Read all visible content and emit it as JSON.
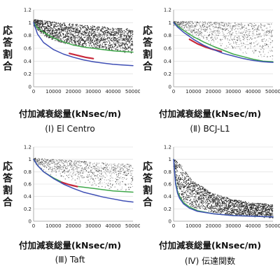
{
  "panels": [
    {
      "caption": "(Ⅰ) El Centro",
      "ylabel": "応答割合",
      "xlabel": "付加減衰総量(kNsec/m)"
    },
    {
      "caption": "(Ⅱ) BCJ-L1",
      "ylabel": "応答割合",
      "xlabel": "付加減衰総量(kNsec/m)"
    },
    {
      "caption": "(Ⅲ) Taft",
      "ylabel": "応答割合",
      "xlabel": "付加減衰総量(kNsec/m)"
    },
    {
      "caption": "(Ⅳ) 伝達関数",
      "ylabel": "応答割合",
      "xlabel": "付加減衰総量(kNsec/m)"
    }
  ],
  "colors": {
    "scatter": "#222222",
    "blue": "#3f4fb5",
    "red": "#c8283a",
    "green": "#3fa84a",
    "grid": "#d9d9d9",
    "axis": "#9a9a9a"
  },
  "chart_data": [
    {
      "type": "scatter",
      "title": "",
      "xlabel": "付加減衰総量(kNsec/m)",
      "ylabel": "応答割合",
      "xlim": [
        0,
        50000
      ],
      "ylim": [
        0,
        1.2
      ],
      "x_ticks": [
        "0",
        "10000",
        "20000",
        "30000",
        "40000",
        "50000"
      ],
      "y_ticks": [
        "0",
        "0.2",
        "0.4",
        "0.6",
        "0.8",
        "1",
        "1.2"
      ],
      "grid": true,
      "scatter_band": {
        "density": "dense",
        "x": [
          0,
          5000,
          10000,
          20000,
          30000,
          40000,
          50000
        ],
        "lower": [
          0.95,
          0.8,
          0.72,
          0.64,
          0.6,
          0.56,
          0.52
        ],
        "upper": [
          1.05,
          1.03,
          1.01,
          0.98,
          0.95,
          0.92,
          0.9
        ]
      },
      "series": [
        {
          "color": "blue",
          "x": [
            0,
            2000,
            5000,
            10000,
            15000,
            20000,
            25000,
            30000,
            35000,
            40000,
            45000,
            50000
          ],
          "y": [
            1.0,
            0.82,
            0.69,
            0.58,
            0.51,
            0.46,
            0.42,
            0.39,
            0.37,
            0.35,
            0.34,
            0.33
          ]
        },
        {
          "color": "red",
          "x": [
            18000,
            22000,
            26000,
            30000
          ],
          "y": [
            0.52,
            0.49,
            0.46,
            0.44
          ]
        },
        {
          "color": "green",
          "x": [
            0,
            2000,
            5000,
            10000,
            15000,
            20000,
            25000,
            30000,
            35000,
            40000,
            45000,
            50000
          ],
          "y": [
            1.0,
            0.92,
            0.85,
            0.76,
            0.7,
            0.65,
            0.62,
            0.6,
            0.58,
            0.56,
            0.55,
            0.54
          ]
        }
      ]
    },
    {
      "type": "scatter",
      "title": "",
      "xlabel": "付加減衰総量(kNsec/m)",
      "ylabel": "応答割合",
      "xlim": [
        0,
        50000
      ],
      "ylim": [
        0,
        1.2
      ],
      "x_ticks": [
        "0",
        "10000",
        "20000",
        "30000",
        "40000",
        "50000"
      ],
      "y_ticks": [
        "0",
        "0.2",
        "0.4",
        "0.6",
        "0.8",
        "1",
        "1.2"
      ],
      "grid": true,
      "scatter_band": {
        "density": "sparse",
        "x": [
          0,
          5000,
          10000,
          20000,
          30000,
          40000,
          50000
        ],
        "lower": [
          0.95,
          0.85,
          0.76,
          0.64,
          0.55,
          0.48,
          0.42
        ],
        "upper": [
          1.02,
          1.02,
          1.02,
          1.01,
          1.0,
          0.99,
          0.98
        ]
      },
      "series": [
        {
          "color": "blue",
          "x": [
            0,
            2000,
            5000,
            10000,
            15000,
            20000,
            25000,
            30000,
            35000,
            40000,
            45000,
            50000
          ],
          "y": [
            1.0,
            0.93,
            0.85,
            0.74,
            0.65,
            0.58,
            0.52,
            0.48,
            0.44,
            0.41,
            0.39,
            0.38
          ]
        },
        {
          "color": "red",
          "x": [
            8000,
            12000,
            16000,
            20000,
            24000
          ],
          "y": [
            0.74,
            0.67,
            0.62,
            0.58,
            0.55
          ]
        },
        {
          "color": "green",
          "x": [
            0,
            2000,
            5000,
            10000,
            15000,
            20000,
            25000,
            30000,
            35000,
            40000,
            45000,
            50000
          ],
          "y": [
            1.0,
            0.95,
            0.88,
            0.78,
            0.7,
            0.63,
            0.57,
            0.51,
            0.47,
            0.43,
            0.4,
            0.39
          ]
        }
      ]
    },
    {
      "type": "scatter",
      "title": "",
      "xlabel": "付加減衰総量(kNsec/m)",
      "ylabel": "応答割合",
      "xlim": [
        0,
        50000
      ],
      "ylim": [
        0,
        1.2
      ],
      "x_ticks": [
        "0",
        "10000",
        "20000",
        "30000",
        "40000",
        "50000"
      ],
      "y_ticks": [
        "0",
        "0.2",
        "0.4",
        "0.6",
        "0.8",
        "1",
        "1.2"
      ],
      "grid": true,
      "scatter_band": {
        "density": "sparse",
        "x": [
          0,
          5000,
          10000,
          20000,
          30000,
          40000,
          50000
        ],
        "lower": [
          0.95,
          0.82,
          0.72,
          0.62,
          0.55,
          0.5,
          0.47
        ],
        "upper": [
          1.02,
          1.01,
          1.0,
          0.98,
          0.96,
          0.94,
          0.92
        ]
      },
      "series": [
        {
          "color": "blue",
          "x": [
            0,
            2000,
            5000,
            10000,
            15000,
            20000,
            25000,
            30000,
            35000,
            40000,
            45000,
            50000
          ],
          "y": [
            1.0,
            0.9,
            0.8,
            0.69,
            0.6,
            0.53,
            0.47,
            0.43,
            0.39,
            0.36,
            0.33,
            0.31
          ]
        },
        {
          "color": "red",
          "x": [
            14000,
            18000,
            22000
          ],
          "y": [
            0.63,
            0.59,
            0.56
          ]
        },
        {
          "color": "green",
          "x": [
            0,
            2000,
            5000,
            10000,
            15000,
            20000,
            25000,
            30000,
            35000,
            40000,
            45000,
            50000
          ],
          "y": [
            1.0,
            0.9,
            0.8,
            0.7,
            0.62,
            0.57,
            0.55,
            0.53,
            0.51,
            0.49,
            0.48,
            0.47
          ]
        }
      ]
    },
    {
      "type": "scatter",
      "title": "",
      "xlabel": "付加減衰総量(kNsec/m)",
      "ylabel": "応答割合",
      "xlim": [
        0,
        50000
      ],
      "ylim": [
        0,
        1.2
      ],
      "x_ticks": [
        "0",
        "10000",
        "20000",
        "30000",
        "40000",
        "50000"
      ],
      "y_ticks": [
        "0",
        "0.2",
        "0.4",
        "0.6",
        "0.8",
        "1",
        "1.2"
      ],
      "grid": true,
      "scatter_band": {
        "density": "dense",
        "x": [
          0,
          2000,
          5000,
          10000,
          20000,
          30000,
          40000,
          50000
        ],
        "lower": [
          0.95,
          0.45,
          0.3,
          0.22,
          0.14,
          0.1,
          0.07,
          0.05
        ],
        "upper": [
          1.0,
          0.97,
          0.85,
          0.65,
          0.45,
          0.35,
          0.3,
          0.27
        ]
      },
      "series": [
        {
          "color": "blue",
          "x": [
            0,
            1000,
            2000,
            3000,
            5000,
            8000,
            12000,
            20000,
            30000,
            40000,
            50000
          ],
          "y": [
            1.0,
            0.6,
            0.45,
            0.37,
            0.28,
            0.21,
            0.16,
            0.12,
            0.09,
            0.08,
            0.07
          ]
        },
        {
          "color": "green",
          "x": [
            0,
            1000,
            2000,
            3000,
            5000,
            8000,
            12000,
            20000,
            30000,
            40000,
            50000
          ],
          "y": [
            1.0,
            0.63,
            0.48,
            0.4,
            0.3,
            0.23,
            0.17,
            0.12,
            0.09,
            0.08,
            0.07
          ]
        }
      ]
    }
  ]
}
